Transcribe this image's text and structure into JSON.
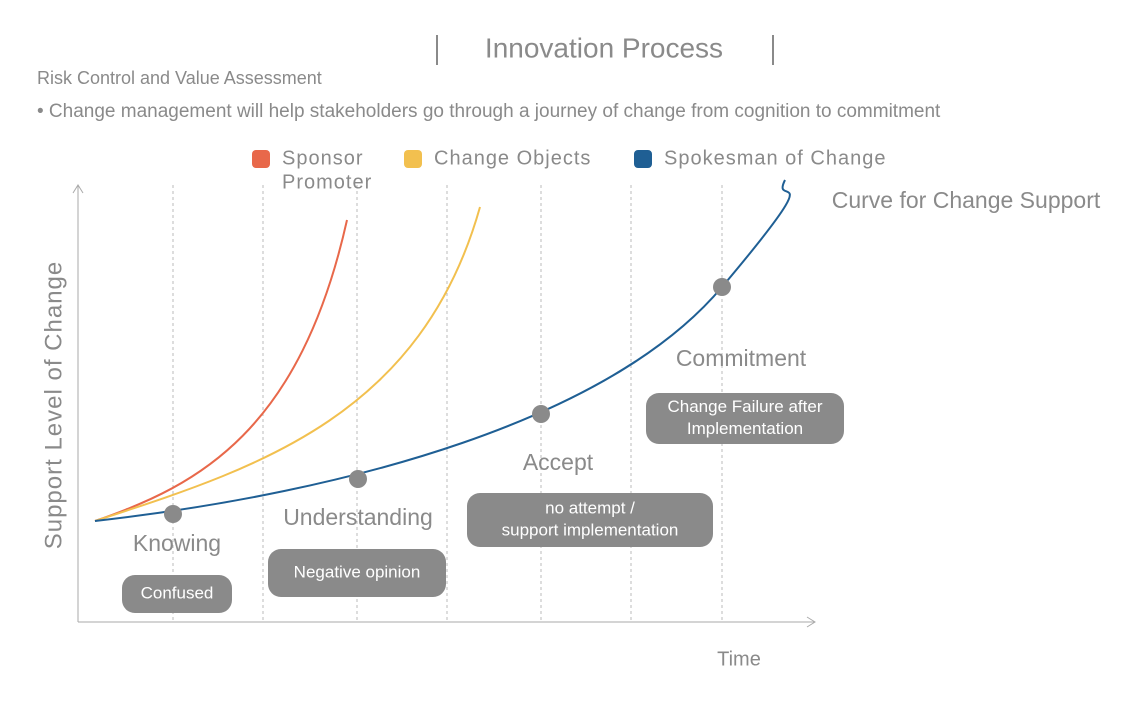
{
  "header": {
    "title": "Innovation Process",
    "subtitle": "Risk Control and Value Assessment",
    "bullet": "• Change management will help stakeholders go through a journey of change from cognition to commitment"
  },
  "legend": [
    {
      "label": [
        "Sponsor",
        "Promoter"
      ],
      "color": "#e8684a"
    },
    {
      "label": [
        "Change Objects"
      ],
      "color": "#f2c04f"
    },
    {
      "label": [
        "Spokesman of Change"
      ],
      "color": "#1f5f94"
    }
  ],
  "curve_label": "Curve for Change Support",
  "y_axis_label": "Support Level of Change",
  "x_axis_label": "Time",
  "stages": [
    {
      "name": "Knowing",
      "state": [
        "Confused"
      ]
    },
    {
      "name": "Understanding",
      "state": [
        "Negative opinion"
      ]
    },
    {
      "name": "Accept",
      "state": [
        "no attempt /",
        "support implementation"
      ]
    },
    {
      "name": "Commitment",
      "state": [
        "Change Failure after",
        "Implementation"
      ]
    }
  ]
}
